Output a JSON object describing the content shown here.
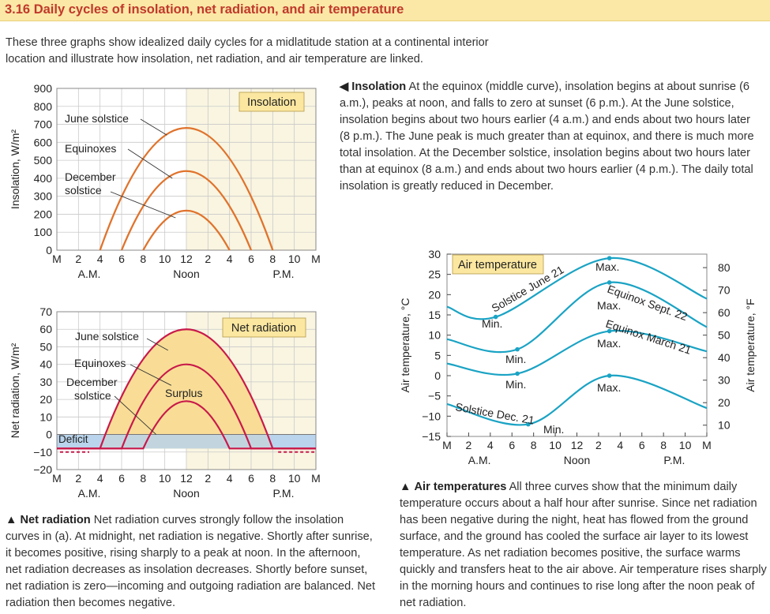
{
  "header": {
    "title": "3.16 Daily cycles of insolation, net radiation, and air temperature",
    "intro": "These three graphs show idealized daily cycles for a midlatitude station at a continental interior location and illustrate how insolation, net radiation, and air temperature are linked."
  },
  "captions": {
    "insolation": {
      "marker": "◀",
      "head": "Insolation",
      "text": "At the equinox (middle curve), insolation begins at about sunrise (6 a.m.), peaks at noon, and falls to zero at sunset (6 p.m.). At the June solstice, insolation begins about two hours earlier (4 a.m.) and ends about two hours later (8 p.m.). The June peak is much greater than at equinox, and there is much more total insolation. At the December solstice, insolation begins about two hours later than at equinox (8 a.m.) and ends about two hours earlier (4 p.m.). The daily total insolation is greatly reduced in December."
    },
    "net_radiation": {
      "marker": "▲",
      "head": "Net radiation",
      "text": "Net radiation curves strongly follow the insolation curves in (a). At midnight, net radiation is negative. Shortly after sunrise, it becomes positive, rising sharply to a peak at noon. In the afternoon, net radiation decreases as insolation decreases. Shortly before sunset, net radiation is zero—incoming and outgoing radiation are balanced. Net radiation then becomes negative."
    },
    "air_temperature": {
      "marker": "▲",
      "head": "Air temperatures",
      "text": "All three curves show that the minimum daily temperature occurs about a half hour after sunrise. Since net radiation has been negative during the night, heat has flowed from the ground surface, and the ground has cooled the surface air layer to its lowest temperature. As net radiation becomes positive, the surface warms quickly and transfers heat to the air above. Air temperature rises sharply in the morning hours and continues to rise long after the noon peak of net radiation."
    }
  },
  "colors": {
    "orange": "#e0732c",
    "red": "#c8194a",
    "teal": "#1aa3c4",
    "grid": "#c9c9c9",
    "day_fill": "#f9f5e1",
    "label_fill": "#fbe7a0",
    "surplus": "#f9dd96",
    "deficit": "#b9d3ec"
  },
  "chart_data": [
    {
      "type": "line",
      "title": "Insolation",
      "ylabel": "Insolation, W/m²",
      "xticks": [
        "M",
        "2",
        "4",
        "6",
        "8",
        "10",
        "12",
        "2",
        "4",
        "6",
        "8",
        "10",
        "M"
      ],
      "xsublabels": [
        "A.M.",
        "Noon",
        "P.M."
      ],
      "yticks": [
        "0",
        "100",
        "200",
        "300",
        "400",
        "500",
        "600",
        "700",
        "800",
        "900"
      ],
      "ylim": [
        0,
        900
      ],
      "series": [
        {
          "name": "June solstice",
          "x": [
            4,
            12,
            20
          ],
          "y": [
            0,
            680,
            0
          ]
        },
        {
          "name": "Equinoxes",
          "x": [
            6,
            12,
            18
          ],
          "y": [
            0,
            440,
            0
          ]
        },
        {
          "name": "December solstice",
          "x": [
            8,
            12,
            16
          ],
          "y": [
            0,
            220,
            0
          ]
        }
      ],
      "labels": [
        "June solstice",
        "Equinoxes",
        "December",
        "solstice"
      ]
    },
    {
      "type": "area",
      "title": "Net radiation",
      "ylabel": "Net radiation, W/m²",
      "xticks": [
        "M",
        "2",
        "4",
        "6",
        "8",
        "10",
        "12",
        "2",
        "4",
        "6",
        "8",
        "10",
        "M"
      ],
      "xsublabels": [
        "A.M.",
        "Noon",
        "P.M."
      ],
      "yticks": [
        "−20",
        "−10",
        "0",
        "10",
        "20",
        "30",
        "40",
        "50",
        "60",
        "70"
      ],
      "ylim": [
        -20,
        70
      ],
      "series": [
        {
          "name": "June solstice",
          "x": [
            0,
            4,
            12,
            20,
            24
          ],
          "y": [
            -8,
            -8,
            60,
            -8,
            -8
          ]
        },
        {
          "name": "Equinoxes",
          "x": [
            0,
            6,
            12,
            18,
            24
          ],
          "y": [
            -8,
            -8,
            40,
            -8,
            -8
          ]
        },
        {
          "name": "December solstice",
          "x": [
            0,
            8,
            12,
            16,
            24
          ],
          "y": [
            -8,
            -8,
            19,
            -8,
            -8
          ]
        }
      ],
      "labels": [
        "June solstice",
        "Equinoxes",
        "December",
        "solstice",
        "Surplus",
        "Deficit"
      ]
    },
    {
      "type": "line",
      "title": "Air temperature",
      "ylabel": "Air temperature, °C",
      "ylabel_right": "Air temperature, °F",
      "xticks": [
        "M",
        "2",
        "4",
        "6",
        "8",
        "10",
        "12",
        "2",
        "4",
        "6",
        "8",
        "10",
        "M"
      ],
      "xsublabels": [
        "A.M.",
        "Noon",
        "P.M."
      ],
      "yticks": [
        "−15",
        "−10",
        "−5",
        "0",
        "5",
        "10",
        "15",
        "20",
        "25",
        "30"
      ],
      "yticks_right": [
        "10",
        "20",
        "30",
        "40",
        "50",
        "60",
        "70",
        "80"
      ],
      "ylim": [
        -15,
        30
      ],
      "series": [
        {
          "name": "Solstice June 21",
          "x": [
            0,
            4.5,
            15,
            24
          ],
          "y": [
            17,
            14.5,
            29,
            19
          ]
        },
        {
          "name": "Equinox Sept. 22",
          "x": [
            0,
            6.5,
            15,
            24
          ],
          "y": [
            9,
            6.5,
            23,
            12
          ]
        },
        {
          "name": "Equinox March 21",
          "x": [
            0,
            6.5,
            15,
            24
          ],
          "y": [
            3,
            0.5,
            11,
            6
          ]
        },
        {
          "name": "Solstice Dec. 21",
          "x": [
            0,
            7.5,
            15,
            24
          ],
          "y": [
            -7,
            -12,
            0,
            -8
          ]
        }
      ],
      "labels": [
        "Min.",
        "Max."
      ]
    }
  ]
}
